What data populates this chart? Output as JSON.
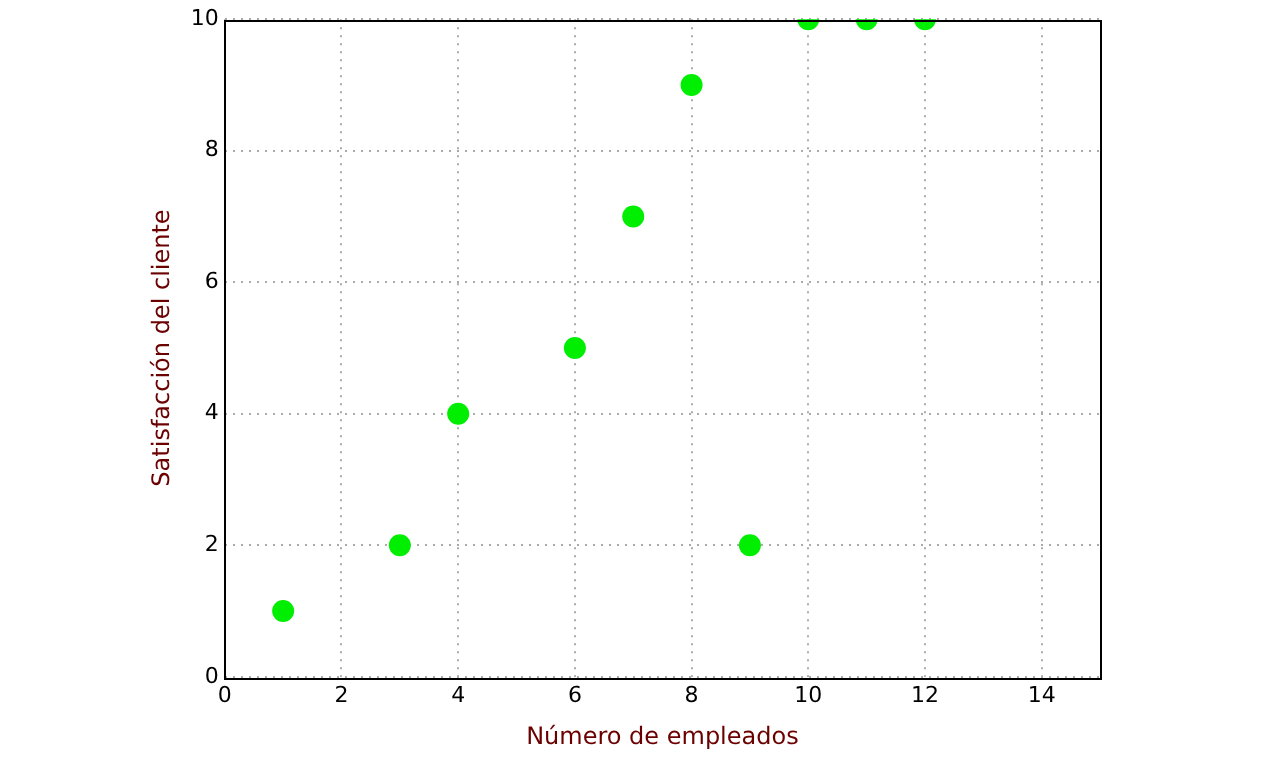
{
  "chart_data": {
    "type": "scatter",
    "xlabel": "Número de empleados",
    "ylabel": "Satisfacción del cliente",
    "x": [
      1,
      3,
      4,
      6,
      7,
      8,
      9,
      10,
      11,
      12
    ],
    "series": [
      {
        "color": "#00ee00",
        "values": [
          1,
          2,
          4,
          5,
          7,
          9,
          2,
          10,
          10,
          10
        ]
      }
    ],
    "xlim": [
      0,
      15
    ],
    "xticks": [
      0,
      2,
      4,
      6,
      8,
      10,
      12,
      14
    ],
    "ylim": [
      0,
      10
    ],
    "yticks": [
      0,
      2,
      4,
      6,
      8,
      10
    ],
    "grid": true,
    "legend": false,
    "marker": "circle"
  }
}
